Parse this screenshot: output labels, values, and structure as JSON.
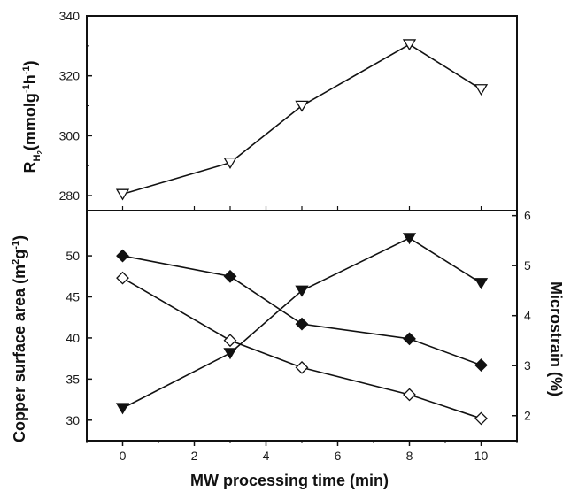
{
  "colors": {
    "line": "#111111",
    "axis": "#111111",
    "open_marker_fill": "#ffffff"
  },
  "chart_data": [
    {
      "panel": "top",
      "type": "line",
      "x": [
        0,
        3,
        5,
        8,
        10
      ],
      "xlim": [
        -1,
        11
      ],
      "ylabel": "R_H2 (mmolg⁻¹h⁻¹)",
      "ylabel_parts": {
        "main": "R",
        "sub": "H",
        "subsub": "2",
        "unit": "(mmolg",
        "e1": "-1",
        "mid": "h",
        "e2": "-1",
        "close": ")"
      },
      "ylim": [
        275,
        340
      ],
      "yticks": [
        280,
        300,
        320,
        340
      ],
      "series": [
        {
          "marker": "triangle-down-open",
          "axis": "left",
          "values": [
            280.5,
            291,
            310,
            330.5,
            315.5
          ]
        }
      ]
    },
    {
      "panel": "bottom",
      "type": "line",
      "x": [
        0,
        3,
        5,
        8,
        10
      ],
      "xlim": [
        -1,
        11
      ],
      "xticks": [
        0,
        2,
        4,
        6,
        8,
        10
      ],
      "xlabel": "MW processing time (min)",
      "ylabel": "Copper surface area (m²g⁻¹)",
      "ylabel_parts": {
        "main": "Copper surface area (m",
        "e1": "2",
        "mid": "g",
        "e2": "-1",
        "close": ")"
      },
      "ylim": [
        27.5,
        55.5
      ],
      "yticks": [
        30,
        35,
        40,
        45,
        50
      ],
      "y2label": "Microstrain (%)",
      "y2lim": [
        1.5,
        6.1
      ],
      "y2ticks": [
        2,
        3,
        4,
        5,
        6
      ],
      "series": [
        {
          "marker": "diamond-filled",
          "axis": "left",
          "values": [
            50,
            47.5,
            41.7,
            39.9,
            36.7
          ]
        },
        {
          "marker": "diamond-open",
          "axis": "left",
          "values": [
            47.3,
            39.7,
            36.4,
            33.1,
            30.2
          ]
        },
        {
          "marker": "triangle-down-filled",
          "axis": "right",
          "values": [
            2.15,
            3.25,
            4.5,
            5.55,
            4.65
          ]
        }
      ]
    }
  ]
}
